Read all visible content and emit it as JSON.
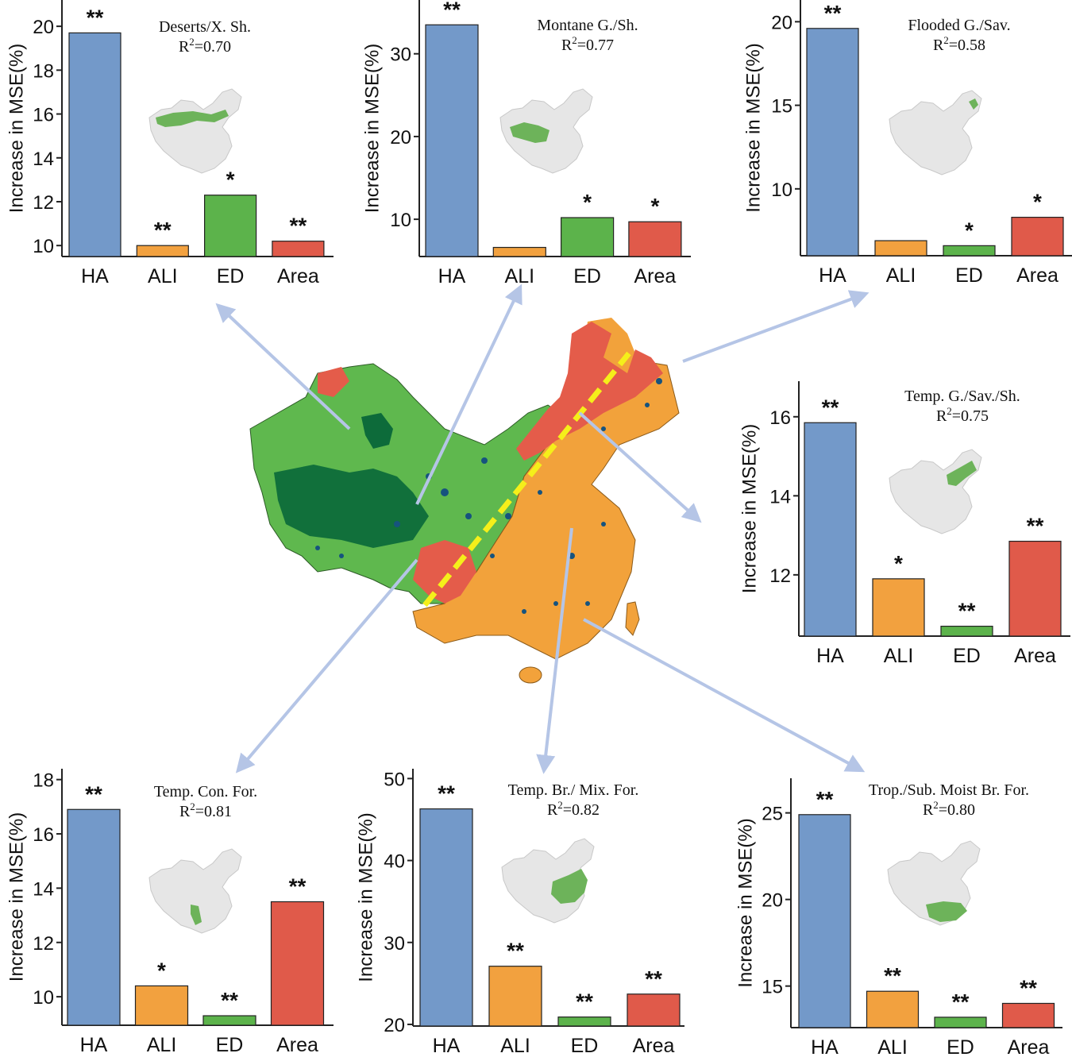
{
  "y_axis_label": "Increase in MSE(%)",
  "colors": {
    "HA": "#7399c9",
    "ALI": "#f2a13f",
    "ED": "#5cb34b",
    "Area": "#e05a4a",
    "arrow": "#b5c5e6",
    "inset_land": "#e6e6e6",
    "inset_biome": "#6db35a",
    "map_green": "#5fb84e",
    "map_dark": "#0d6b3a",
    "map_orange": "#f2a23b",
    "map_red": "#e45c4a",
    "map_blue": "#16537e",
    "divider": "#f5ef1a"
  },
  "chart_data": [
    {
      "id": "deserts",
      "type": "bar",
      "title": "Deserts/X. Sh.",
      "r2": "0.70",
      "categories": [
        "HA",
        "ALI",
        "ED",
        "Area"
      ],
      "values": [
        19.7,
        10.0,
        12.3,
        10.2
      ],
      "significance": [
        "**",
        "**",
        "*",
        "**"
      ],
      "ylim": [
        9.5,
        21.2
      ],
      "yticks": [
        10,
        12,
        14,
        16,
        18,
        20
      ],
      "ylabel": "Increase in MSE(%)"
    },
    {
      "id": "montane",
      "type": "bar",
      "title": "Montane G./Sh.",
      "r2": "0.77",
      "categories": [
        "HA",
        "ALI",
        "ED",
        "Area"
      ],
      "values": [
        33.5,
        6.6,
        10.2,
        9.7
      ],
      "significance": [
        "**",
        "",
        "*",
        "*"
      ],
      "ylim": [
        5.5,
        36.5
      ],
      "yticks": [
        10,
        20,
        30
      ],
      "ylabel": "Increase in MSE(%)"
    },
    {
      "id": "flooded",
      "type": "bar",
      "title": "Flooded G./Sav.",
      "r2": "0.58",
      "categories": [
        "HA",
        "ALI",
        "ED",
        "Area"
      ],
      "values": [
        19.6,
        6.9,
        6.6,
        8.3
      ],
      "significance": [
        "**",
        "",
        "*",
        "*"
      ],
      "ylim": [
        6.0,
        21.3
      ],
      "yticks": [
        10,
        15,
        20
      ],
      "ylabel": "Increase in MSE(%)"
    },
    {
      "id": "temperate_grass",
      "type": "bar",
      "title": "Temp. G./Sav./Sh.",
      "r2": "0.75",
      "categories": [
        "HA",
        "ALI",
        "ED",
        "Area"
      ],
      "values": [
        15.85,
        11.9,
        10.7,
        12.85
      ],
      "significance": [
        "**",
        "*",
        "**",
        "**"
      ],
      "ylim": [
        10.45,
        16.9
      ],
      "yticks": [
        12,
        14,
        16
      ],
      "ylabel": "Increase in MSE(%)"
    },
    {
      "id": "temperate_conifer",
      "type": "bar",
      "title": "Temp. Con. For.",
      "r2": "0.81",
      "categories": [
        "HA",
        "ALI",
        "ED",
        "Area"
      ],
      "values": [
        16.9,
        10.4,
        9.3,
        13.5
      ],
      "significance": [
        "**",
        "*",
        "**",
        "**"
      ],
      "ylim": [
        8.95,
        18.4
      ],
      "yticks": [
        10,
        12,
        14,
        16,
        18
      ],
      "ylabel": "Increase in MSE(%)"
    },
    {
      "id": "temperate_broadleaf",
      "type": "bar",
      "title": "Temp. Br./ Mix. For.",
      "r2": "0.82",
      "categories": [
        "HA",
        "ALI",
        "ED",
        "Area"
      ],
      "values": [
        46.3,
        27.1,
        20.9,
        23.7
      ],
      "significance": [
        "**",
        "**",
        "**",
        "**"
      ],
      "ylim": [
        19.8,
        51.2
      ],
      "yticks": [
        20,
        30,
        40,
        50
      ],
      "ylabel": "Increase in MSE(%)"
    },
    {
      "id": "tropical_moist",
      "type": "bar",
      "title": "Trop./Sub. Moist Br. For.",
      "r2": "0.80",
      "categories": [
        "HA",
        "ALI",
        "ED",
        "Area"
      ],
      "values": [
        24.9,
        14.7,
        13.2,
        14.0
      ],
      "significance": [
        "**",
        "**",
        "**",
        "**"
      ],
      "ylim": [
        12.6,
        27.0
      ],
      "yticks": [
        15,
        20,
        25
      ],
      "ylabel": "Increase in MSE(%)"
    }
  ]
}
